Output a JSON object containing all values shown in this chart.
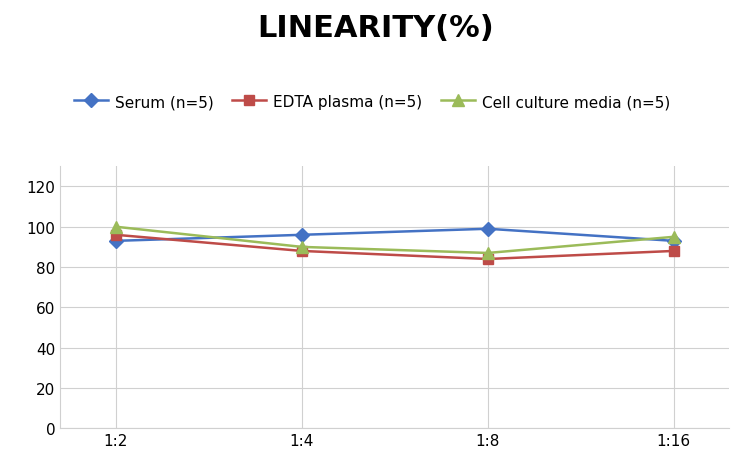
{
  "title": "LINEARITY(%)",
  "x_labels": [
    "1:2",
    "1:4",
    "1:8",
    "1:16"
  ],
  "x_positions": [
    0,
    1,
    2,
    3
  ],
  "series": [
    {
      "label": "Serum (n=5)",
      "values": [
        93,
        96,
        99,
        93
      ],
      "color": "#4472C4",
      "marker": "D",
      "marker_size": 7,
      "linewidth": 1.8
    },
    {
      "label": "EDTA plasma (n=5)",
      "values": [
        96,
        88,
        84,
        88
      ],
      "color": "#BE4B48",
      "marker": "s",
      "marker_size": 7,
      "linewidth": 1.8
    },
    {
      "label": "Cell culture media (n=5)",
      "values": [
        100,
        90,
        87,
        95
      ],
      "color": "#9BBB59",
      "marker": "^",
      "marker_size": 8,
      "linewidth": 1.8
    }
  ],
  "ylim": [
    0,
    130
  ],
  "yticks": [
    0,
    20,
    40,
    60,
    80,
    100,
    120
  ],
  "background_color": "#ffffff",
  "grid_color": "#d0d0d0",
  "title_fontsize": 22,
  "legend_fontsize": 11,
  "tick_fontsize": 11
}
